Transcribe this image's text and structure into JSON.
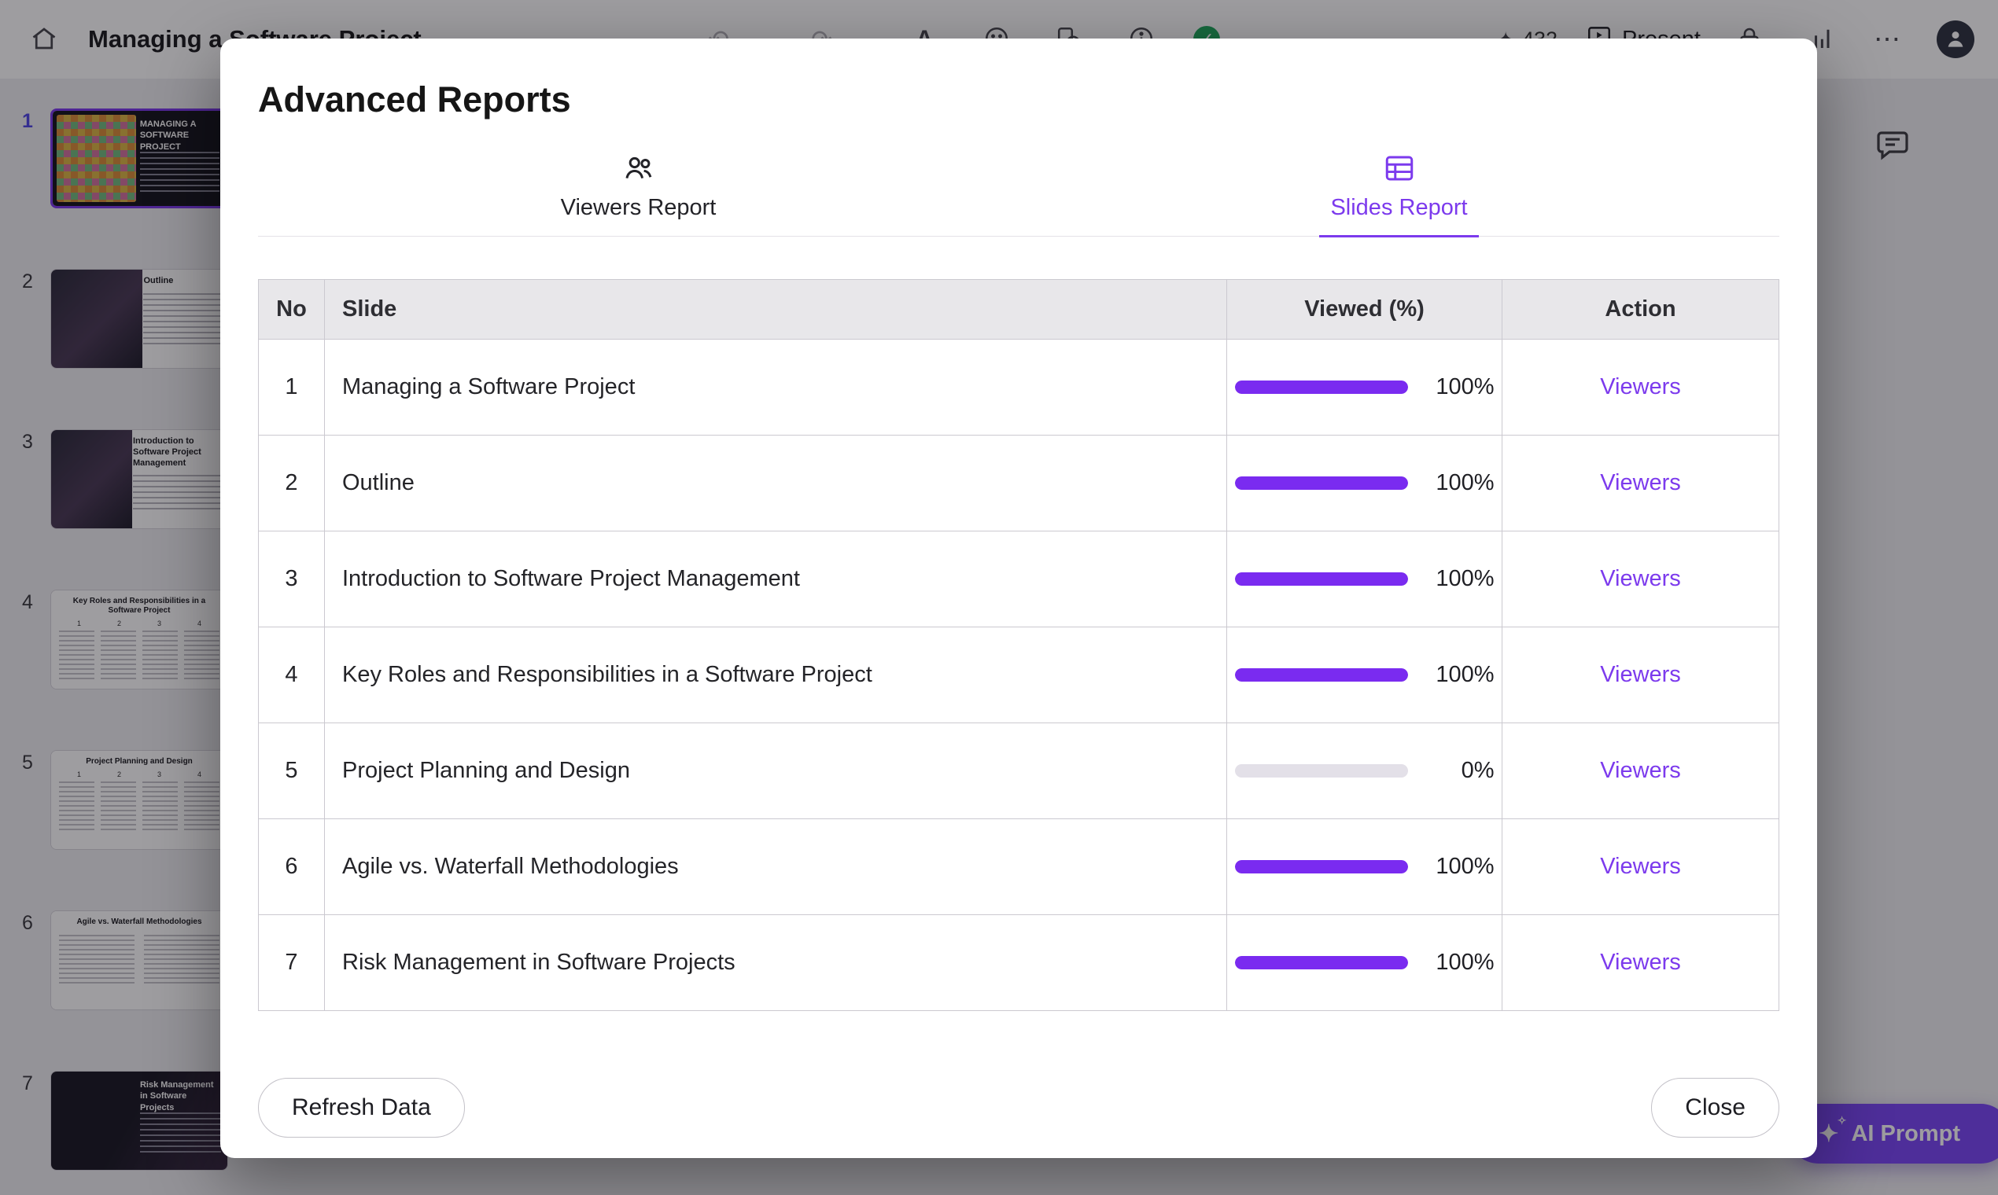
{
  "topbar": {
    "title": "Managing a Software Project",
    "credits": "432",
    "present_label": "Present"
  },
  "sidebar": {
    "slides": [
      {
        "num": "1",
        "title": "Managing a Software Project"
      },
      {
        "num": "2",
        "title": "Outline"
      },
      {
        "num": "3",
        "title": "Introduction to Software Project Management"
      },
      {
        "num": "4",
        "title": "Key Roles and Responsibilities in a Software Project"
      },
      {
        "num": "5",
        "title": "Project Planning and Design"
      },
      {
        "num": "6",
        "title": "Agile vs. Waterfall Methodologies"
      },
      {
        "num": "7",
        "title": "Risk Management in Software Projects"
      }
    ],
    "col_numbers": [
      "1",
      "2",
      "3",
      "4"
    ]
  },
  "modal": {
    "title": "Advanced Reports",
    "tabs": [
      {
        "label": "Viewers Report"
      },
      {
        "label": "Slides Report"
      }
    ],
    "table": {
      "headers": {
        "no": "No",
        "slide": "Slide",
        "viewed": "Viewed (%)",
        "action": "Action"
      },
      "rows": [
        {
          "no": "1",
          "slide": "Managing a Software Project",
          "viewed_pct": 100,
          "viewed_label": "100%",
          "action": "Viewers"
        },
        {
          "no": "2",
          "slide": "Outline",
          "viewed_pct": 100,
          "viewed_label": "100%",
          "action": "Viewers"
        },
        {
          "no": "3",
          "slide": "Introduction to Software Project Management",
          "viewed_pct": 100,
          "viewed_label": "100%",
          "action": "Viewers"
        },
        {
          "no": "4",
          "slide": "Key Roles and Responsibilities in a Software Project",
          "viewed_pct": 100,
          "viewed_label": "100%",
          "action": "Viewers"
        },
        {
          "no": "5",
          "slide": "Project Planning and Design",
          "viewed_pct": 0,
          "viewed_label": "0%",
          "action": "Viewers"
        },
        {
          "no": "6",
          "slide": "Agile vs. Waterfall Methodologies",
          "viewed_pct": 100,
          "viewed_label": "100%",
          "action": "Viewers"
        },
        {
          "no": "7",
          "slide": "Risk Management in Software Projects",
          "viewed_pct": 100,
          "viewed_label": "100%",
          "action": "Viewers"
        }
      ]
    },
    "refresh_label": "Refresh Data",
    "close_label": "Close"
  },
  "canvas": {
    "ai_prompt_label": "AI Prompt"
  },
  "colors": {
    "accent_purple": "#7c3aed",
    "progress_purple": "#7a2bf0",
    "progress_track": "#e3e0e8"
  }
}
